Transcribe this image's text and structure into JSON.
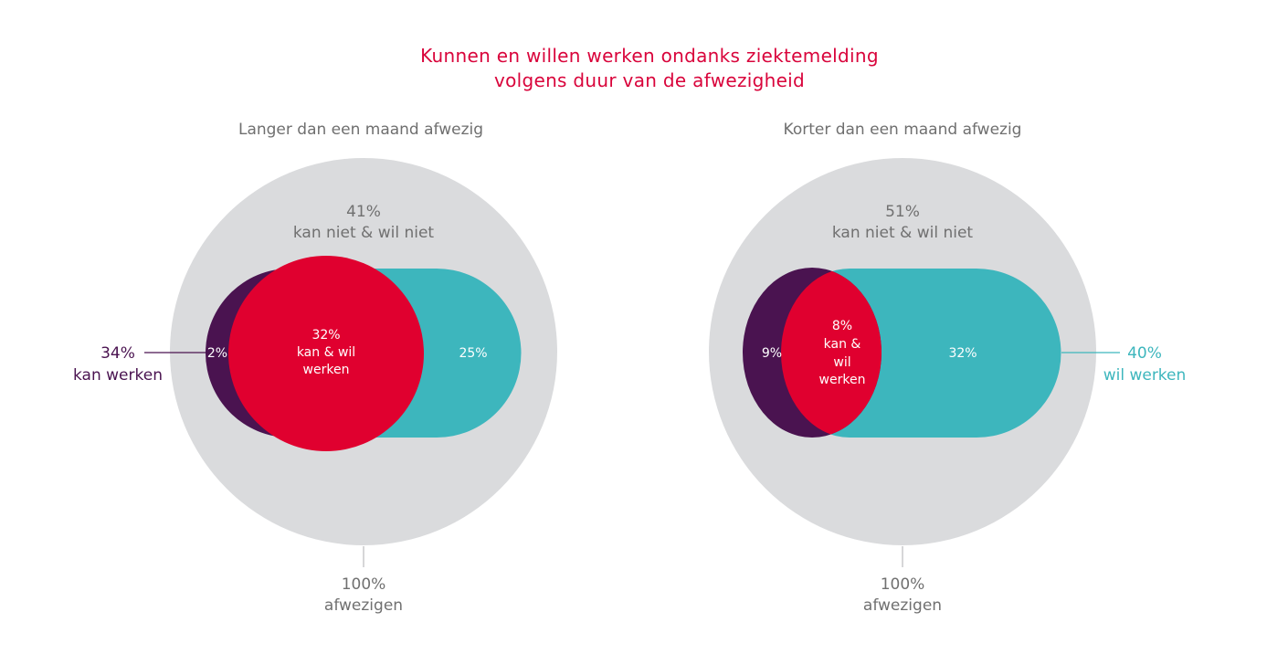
{
  "title": {
    "line1": "Kunnen en willen werken ondanks ziektemelding",
    "line2": "volgens duur van de afwezigheid"
  },
  "colors": {
    "circle": "#dadbdd",
    "kan": "#4a1350",
    "overlap": "#e0002f",
    "wil": "#3db6bd",
    "title": "#d9043b",
    "text_grey": "#707070"
  },
  "panels": [
    {
      "subtitle": "Langer dan een maand afwezig",
      "none_pct": "41%",
      "none_label": "kan niet & wil niet",
      "kan_only": "2%",
      "overlap_pct": "32%",
      "overlap_l1": "kan & wil",
      "overlap_l2": "werken",
      "wil_only": "25%",
      "total_pct": "100%",
      "total_label": "afwezigen",
      "side_pct": "34%",
      "side_label": "kan werken"
    },
    {
      "subtitle": "Korter dan een maand afwezig",
      "none_pct": "51%",
      "none_label": "kan niet & wil niet",
      "kan_only": "9%",
      "overlap_pct": "8%",
      "overlap_l1": "kan &",
      "overlap_l2": "wil",
      "overlap_l3": "werken",
      "wil_only": "32%",
      "total_pct": "100%",
      "total_label": "afwezigen",
      "side_pct": "40%",
      "side_label": "wil werken"
    }
  ]
}
